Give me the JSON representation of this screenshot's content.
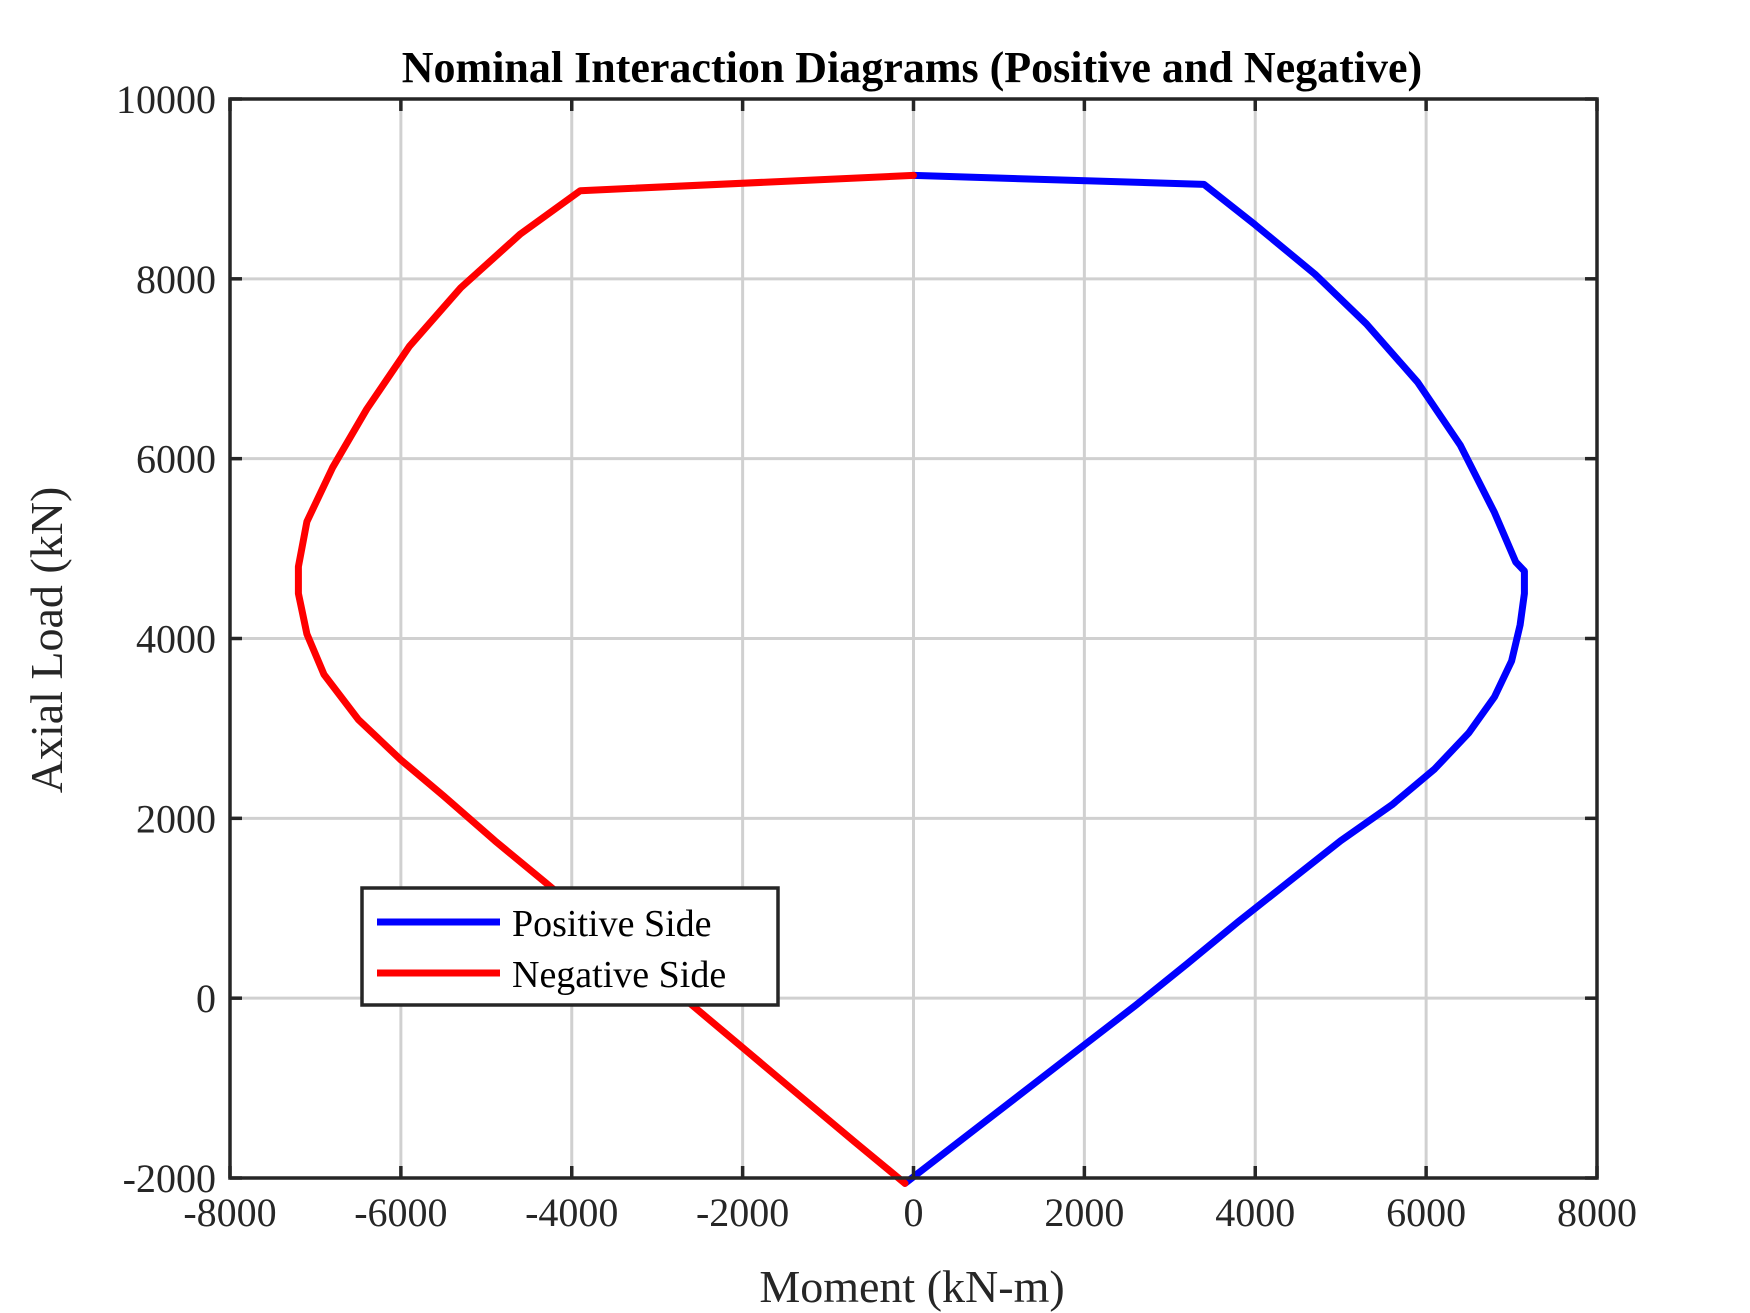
{
  "chart_data": {
    "type": "line",
    "title": "Nominal Interaction Diagrams (Positive and Negative)",
    "xlabel": "Moment (kN-m)",
    "ylabel": "Axial Load (kN)",
    "xlim": [
      -8000,
      8000
    ],
    "ylim": [
      -2000,
      10000
    ],
    "xticks": [
      -8000,
      -6000,
      -4000,
      -2000,
      0,
      2000,
      4000,
      6000,
      8000
    ],
    "yticks": [
      -2000,
      0,
      2000,
      4000,
      6000,
      8000,
      10000
    ],
    "xtick_labels": [
      "-8000",
      "-6000",
      "-4000",
      "-2000",
      "0",
      "2000",
      "4000",
      "6000",
      "8000"
    ],
    "ytick_labels": [
      "-2000",
      "0",
      "2000",
      "4000",
      "6000",
      "8000",
      "10000"
    ],
    "grid": true,
    "legend_position": "bottom-left",
    "series": [
      {
        "name": "Positive Side",
        "color": "#0000ff",
        "x": [
          0,
          3400,
          4000,
          4700,
          5300,
          5900,
          6400,
          6800,
          7050,
          7150,
          7150,
          7100,
          7000,
          6800,
          6500,
          6100,
          5600,
          5000,
          4400,
          3800,
          3200,
          2600,
          2000,
          1400,
          800,
          200,
          -100
        ],
        "y": [
          9150,
          9050,
          8600,
          8050,
          7500,
          6850,
          6150,
          5400,
          4850,
          4750,
          4500,
          4150,
          3750,
          3350,
          2950,
          2550,
          2150,
          1750,
          1300,
          850,
          380,
          -80,
          -520,
          -960,
          -1400,
          -1840,
          -2060
        ]
      },
      {
        "name": "Negative Side",
        "color": "#ff0000",
        "x": [
          0,
          -3900,
          -4600,
          -5300,
          -5900,
          -6400,
          -6800,
          -7100,
          -7200,
          -7200,
          -7100,
          -6900,
          -6500,
          -6000,
          -5500,
          -4900,
          -4300,
          -3700,
          -3100,
          -2500,
          -1900,
          -1300,
          -700,
          -100
        ],
        "y": [
          9150,
          8980,
          8500,
          7900,
          7250,
          6550,
          5900,
          5300,
          4800,
          4500,
          4050,
          3600,
          3100,
          2650,
          2250,
          1750,
          1280,
          800,
          330,
          -150,
          -630,
          -1110,
          -1590,
          -2060
        ]
      }
    ]
  }
}
